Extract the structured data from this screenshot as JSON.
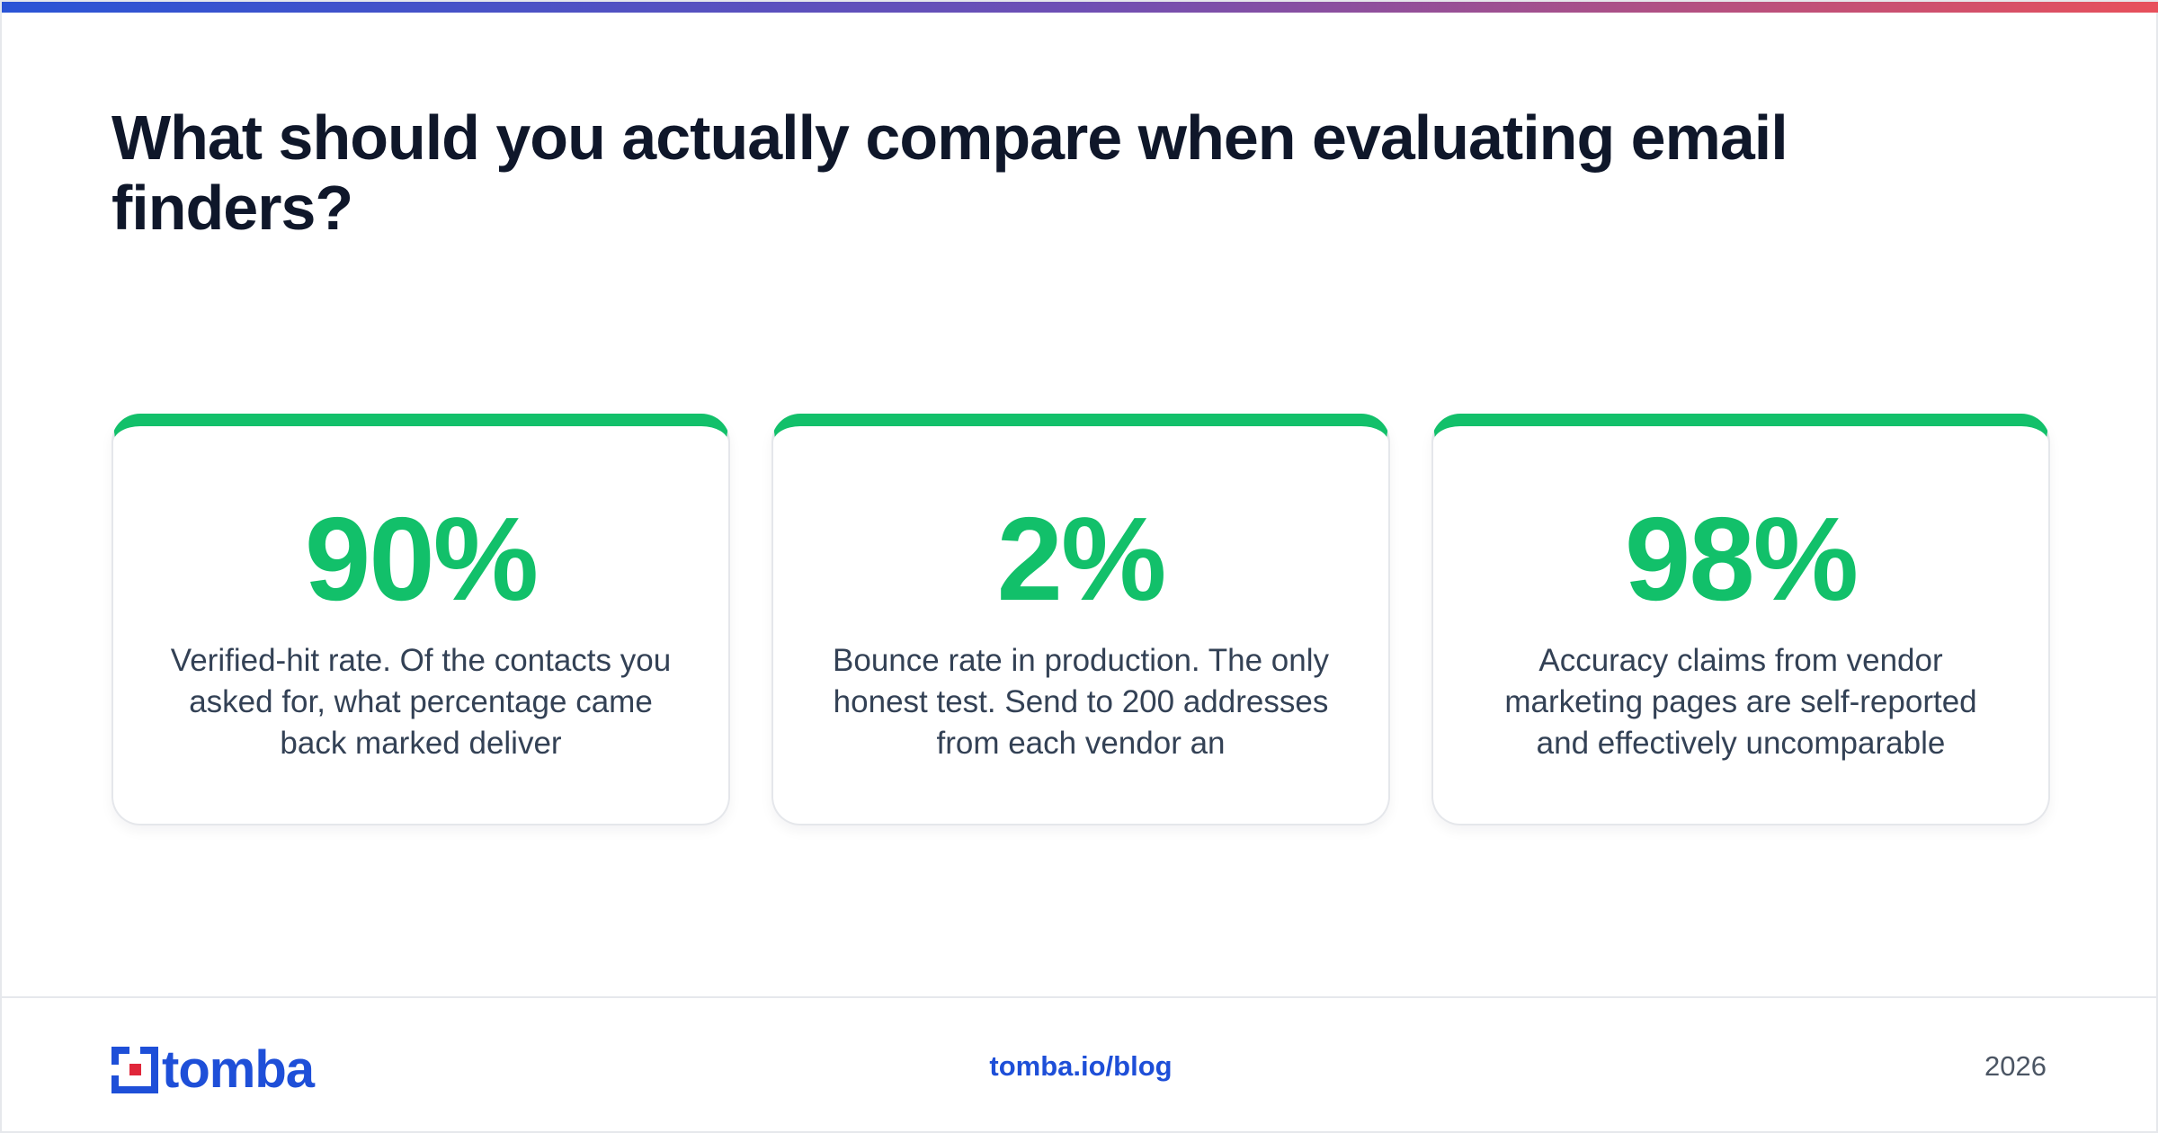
{
  "header": {
    "title": "What should you actually compare when evaluating email finders?"
  },
  "cards": [
    {
      "stat": "90%",
      "description": "Verified-hit rate. Of the contacts you asked for, what percentage came back marked deliver"
    },
    {
      "stat": "2%",
      "description": "Bounce rate in production. The only honest test. Send to 200 addresses from each vendor an"
    },
    {
      "stat": "98%",
      "description": "Accuracy claims from vendor marketing pages are self-reported and effectively uncomparable"
    }
  ],
  "footer": {
    "logo_text": "tomba",
    "link": "tomba.io/blog",
    "year": "2026"
  },
  "colors": {
    "accent_green": "#12c06a",
    "brand_blue": "#1e4fd8",
    "logo_red": "#e0263a",
    "title": "#0f172a"
  }
}
